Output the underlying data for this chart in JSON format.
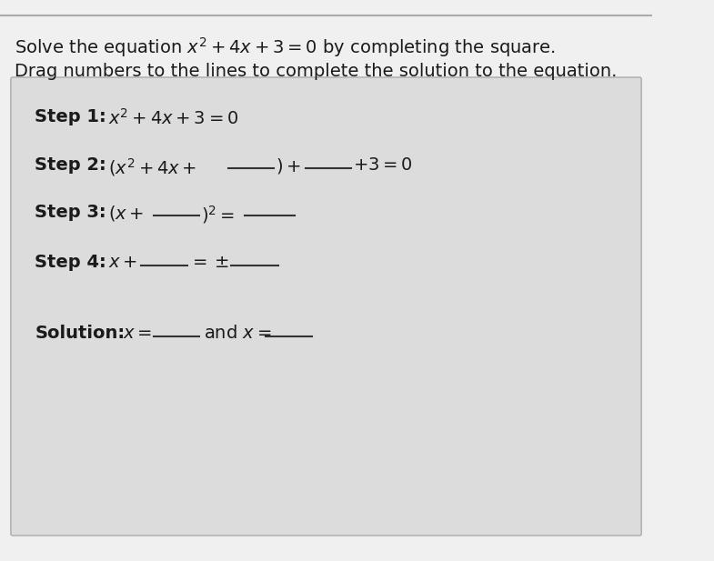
{
  "bg_color": "#f0f0f0",
  "box_bg_color": "#e8e8e8",
  "title_line1": "Solve the equation $x^2 + 4x + 3 = 0$ by completing the square.",
  "title_line2": "Drag numbers to the lines to complete the solution to the equation.",
  "step1_label": "Step 1:",
  "step1_math": "$x^2 + 4x + 3 = 0$",
  "step2_label": "Step 2:",
  "step3_label": "Step 3:",
  "step4_label": "Step 4:",
  "solution_label": "Solution:",
  "text_color": "#1a1a1a",
  "line_color": "#333333",
  "box_border_color": "#999999"
}
